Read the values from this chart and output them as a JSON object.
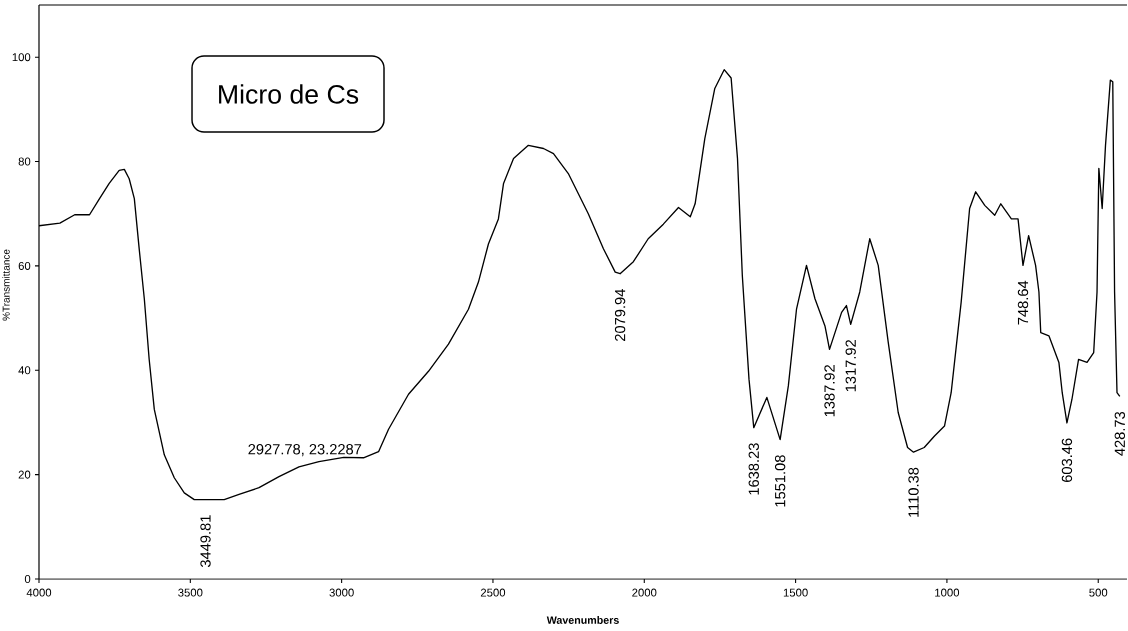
{
  "chart_data": {
    "type": "line",
    "title": "Micro de Cs",
    "xlabel": "Wavenumbers",
    "ylabel": "%Transmittance",
    "xlim": [
      4000,
      405
    ],
    "ylim": [
      0,
      110
    ],
    "xticks": [
      4000,
      3500,
      3000,
      2500,
      2000,
      1500,
      1000,
      500
    ],
    "yticks": [
      0,
      20,
      40,
      60,
      80,
      100
    ],
    "color": "#000000",
    "line_style": "solid",
    "x": [
      4000,
      3931,
      3882,
      3833,
      3800,
      3768,
      3735,
      3718,
      3702,
      3685,
      3669,
      3652,
      3636,
      3619,
      3586,
      3553,
      3520,
      3487,
      3449.81,
      3388,
      3339,
      3273,
      3207,
      3141,
      3075,
      2993,
      2927.78,
      2878,
      2845,
      2779,
      2713,
      2647,
      2581,
      2548,
      2515,
      2482,
      2465,
      2432,
      2383,
      2333,
      2300,
      2251,
      2185,
      2135,
      2096,
      2079.94,
      2036,
      1987,
      1937,
      1887,
      1848,
      1832,
      1800,
      1767,
      1736,
      1713,
      1692,
      1676,
      1654,
      1638.23,
      1595,
      1551.08,
      1524,
      1497,
      1464,
      1436,
      1403,
      1387.92,
      1348,
      1332,
      1317.92,
      1288,
      1255,
      1227,
      1194,
      1161,
      1130,
      1110.38,
      1075,
      1041,
      1008,
      986,
      953,
      925,
      905,
      875,
      842,
      822,
      787,
      765,
      748.64,
      730,
      707,
      696,
      690,
      663,
      630,
      619,
      603.46,
      587,
      565,
      537,
      515,
      504,
      498,
      487,
      476,
      460,
      452,
      446,
      438,
      428.73
    ],
    "values": [
      67.7,
      68.2,
      69.8,
      69.8,
      72.9,
      75.8,
      78.3,
      78.5,
      76.7,
      72.9,
      63.3,
      53.7,
      42.1,
      32.5,
      23.8,
      19.4,
      16.5,
      15.2,
      15.2,
      15.2,
      16.2,
      17.5,
      19.6,
      21.5,
      22.5,
      23.3,
      23.2287,
      24.4,
      28.7,
      35.4,
      39.8,
      45,
      51.7,
      56.9,
      64.2,
      69,
      75.8,
      80.6,
      83.1,
      82.5,
      81.5,
      77.7,
      70,
      63.3,
      58.8,
      58.5,
      60.8,
      65.2,
      68,
      71.2,
      69.4,
      71.9,
      84.4,
      94,
      97.6,
      96,
      80.6,
      58.1,
      38.3,
      29,
      34.8,
      26.7,
      37,
      51.7,
      60.1,
      53.7,
      48.5,
      44,
      51.1,
      52.4,
      48.8,
      55,
      65.2,
      60.1,
      45.4,
      31.9,
      25.2,
      24.3,
      25.2,
      27.4,
      29.3,
      35.7,
      53,
      71,
      74.2,
      71.6,
      69.7,
      71.9,
      69,
      69,
      60.1,
      65.8,
      60.1,
      55,
      47.2,
      46.6,
      41.5,
      35.7,
      29.9,
      34.4,
      42.1,
      41.5,
      43.4,
      55,
      78.7,
      71,
      83.1,
      95.6,
      95.3,
      55,
      35.7,
      35
    ],
    "annotations": [
      {
        "text": "3449.81",
        "x": 3449.81,
        "y": 15.2
      },
      {
        "text": "2927.78, 23.2287",
        "x": 2927.78,
        "y": 23.2287
      },
      {
        "text": "2079.94",
        "x": 2079.94,
        "y": 58.5
      },
      {
        "text": "1638.23",
        "x": 1638.23,
        "y": 29
      },
      {
        "text": "1551.08",
        "x": 1551.08,
        "y": 26.7
      },
      {
        "text": "1387.92",
        "x": 1387.92,
        "y": 44
      },
      {
        "text": "1317.92",
        "x": 1317.92,
        "y": 48.8
      },
      {
        "text": "1110.38",
        "x": 1110.38,
        "y": 24.3
      },
      {
        "text": "748.64",
        "x": 748.64,
        "y": 60.1
      },
      {
        "text": "603.46",
        "x": 603.46,
        "y": 29.9
      },
      {
        "text": "428.73",
        "x": 428.73,
        "y": 35
      }
    ]
  }
}
